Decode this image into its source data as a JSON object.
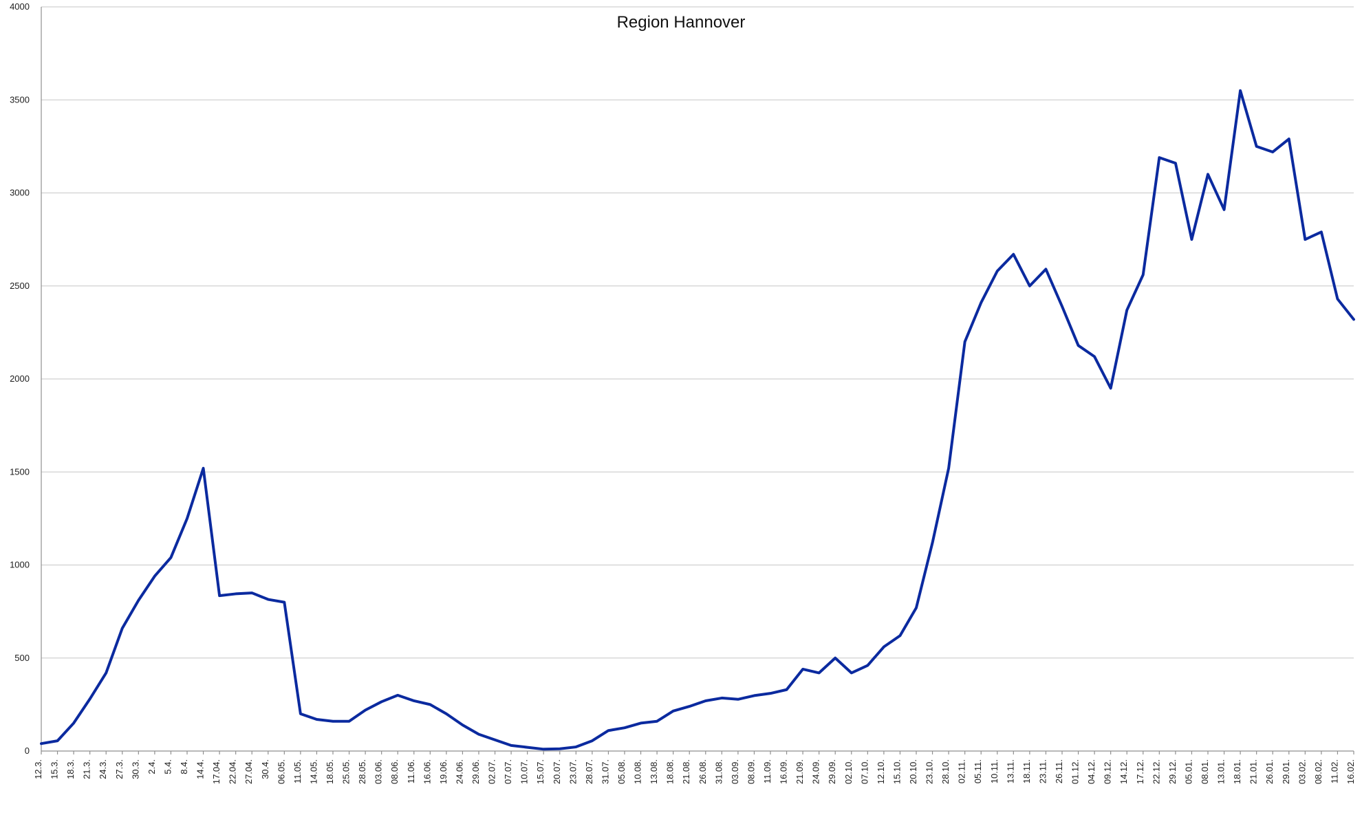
{
  "chart_data": {
    "type": "line",
    "title": "Region Hannover",
    "xlabel": "",
    "ylabel": "",
    "grid": true,
    "legend": "none",
    "ylim": [
      0,
      4000
    ],
    "y_ticks": [
      0,
      500,
      1000,
      1500,
      2000,
      2500,
      3000,
      3500,
      4000
    ],
    "x": [
      "12.3.",
      "15.3.",
      "18.3.",
      "21.3.",
      "24.3.",
      "27.3.",
      "30.3.",
      "2.4.",
      "5.4.",
      "8.4.",
      "14.4.",
      "17.04.",
      "22.04.",
      "27.04.",
      "30.4.",
      "06.05.",
      "11.05.",
      "14.05.",
      "18.05.",
      "25.05.",
      "28.05.",
      "03.06.",
      "08.06.",
      "11.06.",
      "16.06.",
      "19.06.",
      "24.06.",
      "29.06.",
      "02.07.",
      "07.07.",
      "10.07.",
      "15.07.",
      "20.07.",
      "23.07.",
      "28.07.",
      "31.07.",
      "05.08.",
      "10.08.",
      "13.08.",
      "18.08.",
      "21.08.",
      "26.08.",
      "31.08.",
      "03.09.",
      "08.09.",
      "11.09.",
      "16.09.",
      "21.09.",
      "24.09.",
      "29.09.",
      "02.10.",
      "07.10.",
      "12.10.",
      "15.10.",
      "20.10.",
      "23.10.",
      "28.10.",
      "02.11.",
      "05.11.",
      "10.11.",
      "13.11.",
      "18.11.",
      "23.11.",
      "26.11.",
      "01.12.",
      "04.12.",
      "09.12.",
      "14.12.",
      "17.12.",
      "22.12.",
      "29.12.",
      "05.01.",
      "08.01.",
      "13.01.",
      "18.01.",
      "21.01.",
      "26.01.",
      "29.01.",
      "03.02.",
      "08.02.",
      "11.02.",
      "16.02."
    ],
    "series": [
      {
        "color": "#0b2a9f",
        "values": [
          40,
          55,
          150,
          280,
          420,
          660,
          810,
          940,
          1040,
          1250,
          1520,
          835,
          845,
          850,
          815,
          800,
          200,
          170,
          160,
          160,
          220,
          265,
          300,
          270,
          250,
          200,
          140,
          90,
          60,
          30,
          20,
          10,
          12,
          22,
          55,
          110,
          125,
          150,
          160,
          215,
          240,
          270,
          285,
          278,
          298,
          310,
          330,
          440,
          420,
          500,
          420,
          460,
          560,
          620,
          770,
          1120,
          1520,
          2200,
          2410,
          2580,
          2670,
          2500,
          2590,
          2390,
          2180,
          2120,
          1950,
          2370,
          2560,
          3190,
          3160,
          2750,
          3100,
          2910,
          3550,
          3250,
          3220,
          3290,
          2750,
          2790,
          2430,
          2320
        ]
      }
    ]
  }
}
